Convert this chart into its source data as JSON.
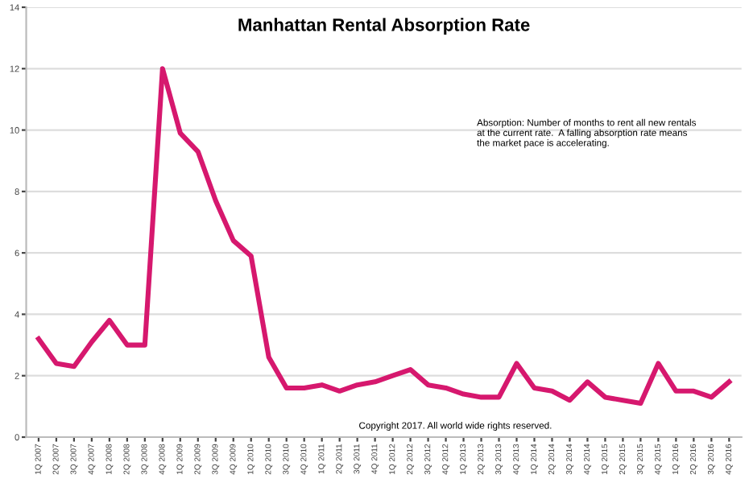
{
  "chart_data": {
    "type": "line",
    "title": "Manhattan Rental Absorption Rate",
    "categories": [
      "1Q 2007",
      "2Q 2007",
      "3Q 2007",
      "4Q 2007",
      "1Q 2008",
      "2Q 2008",
      "3Q 2008",
      "4Q 2008",
      "1Q 2009",
      "2Q 2009",
      "3Q 2009",
      "4Q 2009",
      "1Q 2010",
      "2Q 2010",
      "3Q 2010",
      "4Q 2010",
      "1Q 2011",
      "2Q 2011",
      "3Q 2011",
      "4Q 2011",
      "1Q 2012",
      "2Q 2012",
      "3Q 2012",
      "4Q 2012",
      "1Q 2013",
      "2Q 2013",
      "3Q 2013",
      "4Q 2013",
      "1Q 2014",
      "2Q 2014",
      "3Q 2014",
      "4Q 2014",
      "1Q 2015",
      "2Q 2015",
      "3Q 2015",
      "4Q 2015",
      "1Q 2016",
      "2Q 2016",
      "3Q 2016",
      "4Q 2016"
    ],
    "series": [
      {
        "color": "#d6186e",
        "values": [
          3.2,
          2.4,
          2.3,
          3.1,
          3.8,
          3.0,
          3.0,
          12.0,
          9.9,
          9.3,
          7.7,
          6.4,
          5.9,
          2.6,
          1.6,
          1.6,
          1.7,
          1.5,
          1.7,
          1.8,
          2.0,
          2.2,
          1.7,
          1.6,
          1.4,
          1.3,
          1.3,
          2.4,
          1.6,
          1.5,
          1.2,
          1.8,
          1.3,
          1.2,
          1.1,
          2.4,
          1.5,
          1.5,
          1.3,
          1.8
        ]
      }
    ],
    "ylim": [
      0,
      14
    ],
    "yticks": [
      0,
      2,
      4,
      6,
      8,
      10,
      12,
      14
    ],
    "grid": "y",
    "legend": false,
    "marker": "none",
    "line_style": "solid",
    "annotations": [
      "Absorption: Number of months to rent all new rentals at the current rate.  A falling absorption rate means the market pace is accelerating.",
      "Copyright 2017. All world wide rights reserved."
    ]
  }
}
